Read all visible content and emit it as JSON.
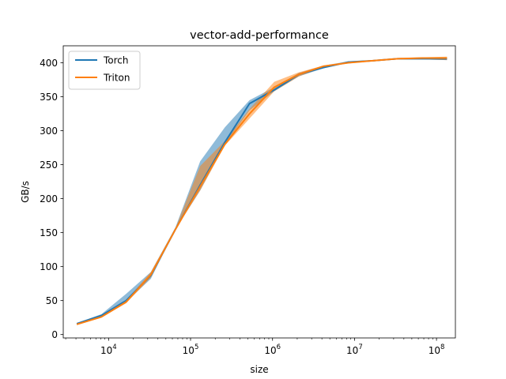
{
  "chart_data": {
    "type": "line",
    "title": "vector-add-performance",
    "xlabel": "size",
    "ylabel": "GB/s",
    "xscale": "log",
    "xlim": [
      2800,
      170000000
    ],
    "ylim": [
      -5,
      425
    ],
    "grid": false,
    "legend_position": "top-left",
    "x_ticks": [
      {
        "value": 10000,
        "base": "10",
        "exp": "4"
      },
      {
        "value": 100000,
        "base": "10",
        "exp": "5"
      },
      {
        "value": 1000000,
        "base": "10",
        "exp": "6"
      },
      {
        "value": 10000000,
        "base": "10",
        "exp": "7"
      },
      {
        "value": 100000000,
        "base": "10",
        "exp": "8"
      }
    ],
    "y_ticks": [
      0,
      50,
      100,
      150,
      200,
      250,
      300,
      350,
      400
    ],
    "x": [
      4096,
      8192,
      16384,
      32768,
      65536,
      131072,
      262144,
      524288,
      1048576,
      2097152,
      4194304,
      8388608,
      16777216,
      33554432,
      67108864,
      134217728
    ],
    "series": [
      {
        "name": "Torch",
        "color": "#1f77b4",
        "values": [
          16,
          28,
          50,
          87,
          155,
          220,
          283,
          340,
          360,
          383,
          393,
          401,
          403,
          406,
          406,
          406
        ],
        "band_low": [
          15,
          27,
          48,
          82,
          155,
          212,
          280,
          330,
          358,
          380,
          392,
          400,
          402,
          405,
          405,
          404
        ],
        "band_high": [
          17,
          30,
          60,
          92,
          158,
          255,
          305,
          345,
          364,
          385,
          396,
          402,
          404,
          407,
          407,
          408
        ]
      },
      {
        "name": "Triton",
        "color": "#ff7f0e",
        "values": [
          15,
          26,
          48,
          88,
          155,
          218,
          280,
          325,
          364,
          383,
          395,
          400,
          403,
          406,
          407,
          407
        ],
        "band_low": [
          14,
          25,
          46,
          84,
          155,
          212,
          278,
          318,
          358,
          380,
          393,
          399,
          402,
          405,
          405,
          404
        ],
        "band_high": [
          16,
          28,
          50,
          92,
          157,
          248,
          285,
          332,
          372,
          386,
          396,
          401,
          404,
          407,
          408,
          409
        ]
      }
    ]
  }
}
